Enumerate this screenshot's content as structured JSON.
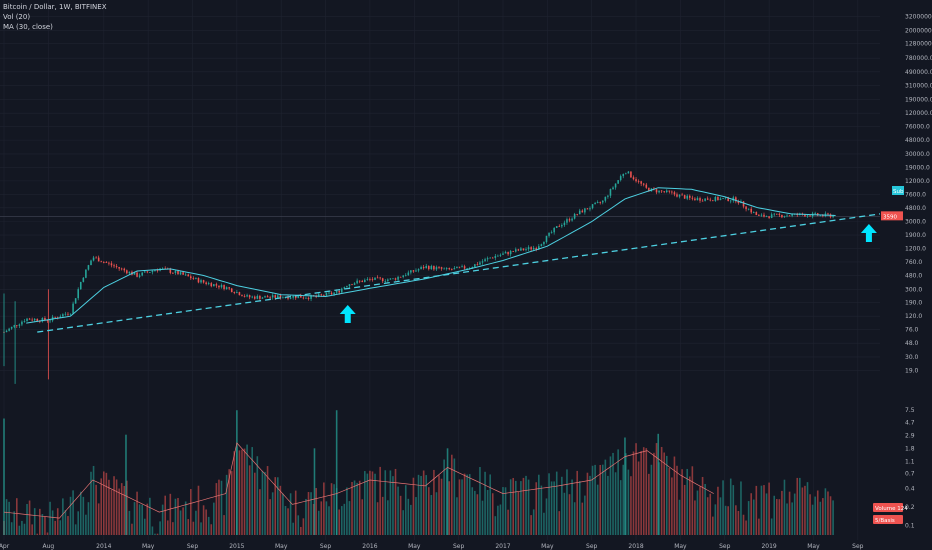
{
  "header": {
    "symbol": "Bitcoin / Dollar, 1W, BITFINEX",
    "volume_label": "Vol (20)",
    "ma_label": "MA (30, close)"
  },
  "colors": {
    "background": "#131722",
    "grid": "#1f2330",
    "up": "#26a69a",
    "down": "#ef5350",
    "ma_line": "#4dd0e1",
    "trendline": "#4dd0e1",
    "arrow": "#00e5ff",
    "vol_ma": "#e57373",
    "price_line": "#3b3f4c"
  },
  "badges": {
    "price": "3590",
    "ma": "Sub",
    "volume": "Volume 124",
    "vol_ma": "5/Basis"
  },
  "chart_data": [
    {
      "type": "candlestick",
      "title": "Bitcoin / Dollar, 1W, BITFINEX",
      "y_scale": "log",
      "ylim": [
        18,
        4600000
      ],
      "y_ticks": [
        "3200000.0",
        "2000000.0",
        "1280000.0",
        "780000.0",
        "490000.0",
        "310000.0",
        "190000.0",
        "120000.0",
        "76000.0",
        "48000.0",
        "30000.0",
        "19000.0",
        "12000.0",
        "7600.0",
        "4800.0",
        "3000.0",
        "1900.0",
        "1200.0",
        "760.0",
        "480.0",
        "300.0",
        "190.0",
        "120.0",
        "76.0",
        "48.0",
        "30.0",
        "19.0"
      ],
      "x_ticks": [
        "Apr",
        "Aug",
        "2014",
        "May",
        "Sep",
        "2015",
        "May",
        "Sep",
        "2016",
        "May",
        "Sep",
        "2017",
        "May",
        "Sep",
        "2018",
        "May",
        "Sep",
        "2019",
        "May",
        "Sep"
      ],
      "x_range": [
        "2013-04",
        "2019-11"
      ],
      "price_path": [
        [
          "2013-04",
          70
        ],
        [
          "2013-06",
          110
        ],
        [
          "2013-08",
          105
        ],
        [
          "2013-10",
          140
        ],
        [
          "2013-11",
          420
        ],
        [
          "2013-12",
          900
        ],
        [
          "2014-02",
          650
        ],
        [
          "2014-04",
          480
        ],
        [
          "2014-06",
          610
        ],
        [
          "2014-08",
          500
        ],
        [
          "2014-10",
          380
        ],
        [
          "2014-12",
          320
        ],
        [
          "2015-02",
          230
        ],
        [
          "2015-04",
          230
        ],
        [
          "2015-06",
          235
        ],
        [
          "2015-08",
          230
        ],
        [
          "2015-10",
          270
        ],
        [
          "2015-11",
          360
        ],
        [
          "2016-01",
          420
        ],
        [
          "2016-03",
          420
        ],
        [
          "2016-06",
          650
        ],
        [
          "2016-08",
          580
        ],
        [
          "2016-10",
          640
        ],
        [
          "2016-12",
          900
        ],
        [
          "2017-02",
          1100
        ],
        [
          "2017-04",
          1250
        ],
        [
          "2017-06",
          2600
        ],
        [
          "2017-08",
          4200
        ],
        [
          "2017-10",
          6000
        ],
        [
          "2017-12",
          17000
        ],
        [
          "2018-02",
          9000
        ],
        [
          "2018-04",
          8000
        ],
        [
          "2018-06",
          6500
        ],
        [
          "2018-08",
          6500
        ],
        [
          "2018-10",
          6400
        ],
        [
          "2018-12",
          3600
        ],
        [
          "2019-02",
          3700
        ],
        [
          "2019-04",
          3800
        ],
        [
          "2019-06",
          3700
        ]
      ],
      "ma30_path": [
        [
          "2013-06",
          95
        ],
        [
          "2013-10",
          120
        ],
        [
          "2014-01",
          320
        ],
        [
          "2014-04",
          560
        ],
        [
          "2014-07",
          600
        ],
        [
          "2014-10",
          480
        ],
        [
          "2015-01",
          340
        ],
        [
          "2015-05",
          250
        ],
        [
          "2015-09",
          235
        ],
        [
          "2016-01",
          310
        ],
        [
          "2016-06",
          430
        ],
        [
          "2016-10",
          600
        ],
        [
          "2017-01",
          800
        ],
        [
          "2017-05",
          1300
        ],
        [
          "2017-09",
          3000
        ],
        [
          "2017-12",
          6500
        ],
        [
          "2018-03",
          9500
        ],
        [
          "2018-06",
          9000
        ],
        [
          "2018-09",
          7000
        ],
        [
          "2018-12",
          4800
        ],
        [
          "2019-03",
          3900
        ],
        [
          "2019-07",
          3700
        ]
      ],
      "trendline": [
        [
          "2013-07",
          70
        ],
        [
          "2019-11",
          3900
        ]
      ],
      "current_price": 3590,
      "arrows": [
        "2015-11",
        "2019-10"
      ]
    },
    {
      "type": "bar",
      "title": "Vol (20)",
      "y_scale": "log",
      "y_ticks": [
        "7.5",
        "4.7",
        "2.9",
        "1.8",
        "1.1",
        "0.7",
        "0.4",
        "0.2",
        "0.1"
      ],
      "ylim": [
        0.07,
        11
      ],
      "volume_path": [
        [
          "2013-04",
          0.15
        ],
        [
          "2013-09",
          0.12
        ],
        [
          "2013-12",
          0.5
        ],
        [
          "2014-06",
          0.15
        ],
        [
          "2014-12",
          0.3
        ],
        [
          "2015-01",
          2.0
        ],
        [
          "2015-06",
          0.2
        ],
        [
          "2015-10",
          0.3
        ],
        [
          "2016-01",
          0.5
        ],
        [
          "2016-06",
          0.4
        ],
        [
          "2016-08",
          0.8
        ],
        [
          "2017-01",
          0.3
        ],
        [
          "2017-06",
          0.4
        ],
        [
          "2017-09",
          0.5
        ],
        [
          "2017-12",
          1.2
        ],
        [
          "2018-02",
          1.5
        ],
        [
          "2018-05",
          0.6
        ],
        [
          "2018-08",
          0.3
        ]
      ],
      "spikes": [
        [
          "2013-04",
          5.5
        ],
        [
          "2014-03",
          3.0
        ],
        [
          "2015-01",
          7.5
        ],
        [
          "2015-08",
          1.8
        ],
        [
          "2015-10",
          7.5
        ],
        [
          "2016-08",
          1.8
        ],
        [
          "2017-12",
          2.7
        ],
        [
          "2018-03",
          3.1
        ]
      ]
    }
  ]
}
